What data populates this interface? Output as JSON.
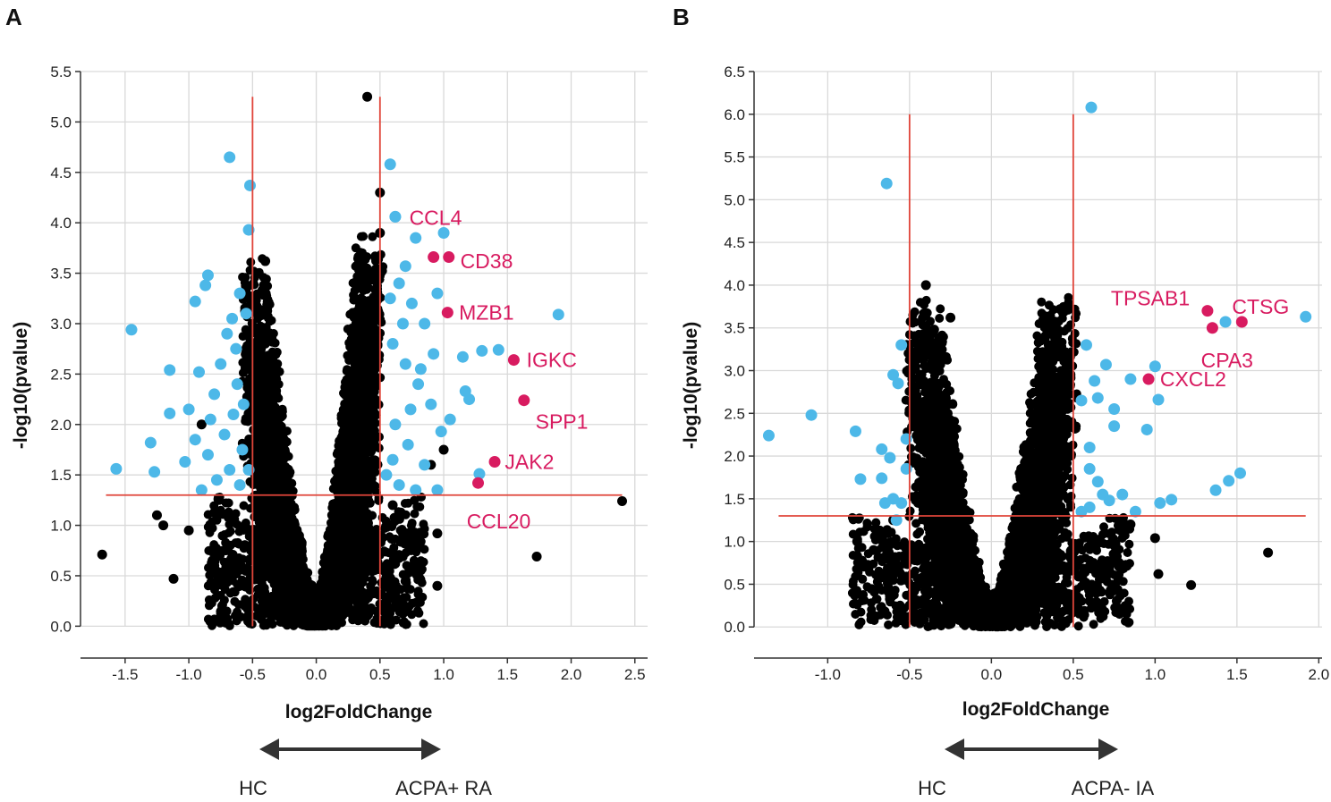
{
  "colors": {
    "nonsig": "#000000",
    "sig": "#4db8e8",
    "highlight": "#d81b60",
    "threshold": "#e0453a",
    "grid": "#d9d9d9"
  },
  "chart_data": [
    {
      "panel": "A",
      "type": "scatter",
      "title": "",
      "xlabel": "log2FoldChange",
      "ylabel": "-log10(pvalue)",
      "xlim": [
        -1.85,
        2.6
      ],
      "ylim": [
        -0.05,
        5.5
      ],
      "xticks": [
        -1.5,
        -1.0,
        -0.5,
        0.0,
        0.5,
        1.0,
        1.5,
        2.0,
        2.5
      ],
      "yticks": [
        0.0,
        0.5,
        1.0,
        1.5,
        2.0,
        2.5,
        3.0,
        3.5,
        4.0,
        4.5,
        5.0,
        5.5
      ],
      "xtick_labels": [
        "-1.5",
        "-1.0",
        "-0.5",
        "0.0",
        "0.5",
        "1.0",
        "1.5",
        "2.0",
        "2.5"
      ],
      "ytick_labels": [
        "0.0",
        "0.5",
        "1.0",
        "1.5",
        "2.0",
        "2.5",
        "3.0",
        "3.5",
        "4.0",
        "4.5",
        "5.0",
        "5.5"
      ],
      "thresholds": {
        "fc": [
          -0.5,
          0.5
        ],
        "fc_line_top": 5.25,
        "p": 1.3,
        "p_line_range": [
          -1.65,
          2.4
        ]
      },
      "cloud": {
        "peak_left": {
          "x": -0.48,
          "y": 3.4
        },
        "peak_right": {
          "x": 0.42,
          "y": 3.7
        },
        "base": 0.5,
        "n": 5000,
        "seed": 7
      },
      "nonsig_points": [
        [
          0.4,
          5.25
        ],
        [
          0.5,
          4.3
        ],
        [
          -0.4,
          3.62
        ],
        [
          0.5,
          3.9
        ],
        [
          -0.55,
          2.7
        ],
        [
          -0.9,
          2.0
        ],
        [
          0.9,
          1.6
        ],
        [
          1.0,
          1.75
        ],
        [
          1.73,
          0.69
        ],
        [
          2.4,
          1.24
        ],
        [
          -1.68,
          0.71
        ],
        [
          -1.25,
          1.1
        ],
        [
          -1.2,
          1.0
        ],
        [
          -1.12,
          0.47
        ],
        [
          -1.0,
          0.95
        ],
        [
          -0.8,
          0.6
        ],
        [
          0.8,
          0.8
        ],
        [
          0.95,
          0.92
        ],
        [
          0.95,
          0.4
        ],
        [
          0.6,
          1.2
        ]
      ],
      "sig_points": [
        [
          -0.68,
          4.65
        ],
        [
          -0.52,
          4.37
        ],
        [
          -0.53,
          3.93
        ],
        [
          0.58,
          4.58
        ],
        [
          0.62,
          4.06
        ],
        [
          0.78,
          3.85
        ],
        [
          1.0,
          3.9
        ],
        [
          -1.45,
          2.94
        ],
        [
          -0.85,
          3.48
        ],
        [
          -0.87,
          3.38
        ],
        [
          -0.95,
          3.22
        ],
        [
          -0.6,
          3.3
        ],
        [
          1.9,
          3.09
        ],
        [
          1.43,
          2.74
        ],
        [
          1.3,
          2.73
        ],
        [
          1.15,
          2.67
        ],
        [
          1.2,
          2.25
        ],
        [
          -1.15,
          2.54
        ],
        [
          -0.92,
          2.52
        ],
        [
          -1.15,
          2.11
        ],
        [
          -1.3,
          1.82
        ],
        [
          -1.57,
          1.56
        ],
        [
          -1.27,
          1.53
        ],
        [
          -1.03,
          1.63
        ],
        [
          1.17,
          2.33
        ],
        [
          1.05,
          2.05
        ],
        [
          0.98,
          1.93
        ],
        [
          1.28,
          1.51
        ],
        [
          0.95,
          1.35
        ],
        [
          0.7,
          3.57
        ],
        [
          0.65,
          3.4
        ],
        [
          0.75,
          3.2
        ],
        [
          0.85,
          3.0
        ],
        [
          0.6,
          2.8
        ],
        [
          0.7,
          2.6
        ],
        [
          0.8,
          2.4
        ],
        [
          0.9,
          2.2
        ],
        [
          0.62,
          2.0
        ],
        [
          0.72,
          1.8
        ],
        [
          0.85,
          1.6
        ],
        [
          0.55,
          1.5
        ],
        [
          0.65,
          1.4
        ],
        [
          0.78,
          1.35
        ],
        [
          0.68,
          3.0
        ],
        [
          0.58,
          3.25
        ],
        [
          0.92,
          2.7
        ],
        [
          0.82,
          2.55
        ],
        [
          0.74,
          2.15
        ],
        [
          0.6,
          1.65
        ],
        [
          0.95,
          3.3
        ],
        [
          -0.7,
          2.9
        ],
        [
          -0.75,
          2.6
        ],
        [
          -0.62,
          2.4
        ],
        [
          -0.8,
          2.3
        ],
        [
          -0.65,
          2.1
        ],
        [
          -0.72,
          1.9
        ],
        [
          -0.58,
          1.75
        ],
        [
          -0.85,
          1.7
        ],
        [
          -0.68,
          1.55
        ],
        [
          -0.6,
          1.4
        ],
        [
          -0.78,
          1.45
        ],
        [
          -0.9,
          1.35
        ],
        [
          -0.55,
          3.1
        ],
        [
          -0.63,
          2.75
        ],
        [
          -0.57,
          2.2
        ],
        [
          -0.95,
          1.85
        ],
        [
          -0.83,
          2.05
        ],
        [
          -1.0,
          2.15
        ],
        [
          -0.53,
          1.55
        ],
        [
          -0.66,
          3.05
        ]
      ],
      "highlights": [
        {
          "gene": "CCL4",
          "x": 0.62,
          "y": 4.06,
          "color": "sig",
          "label_x": 0.73,
          "label_y": 4.05
        },
        {
          "gene": "CD38",
          "x": 0.92,
          "y": 3.66,
          "color": "highlight",
          "label_x": 1.13,
          "label_y": 3.62
        },
        {
          "gene": "MZB1",
          "x": 1.03,
          "y": 3.11,
          "color": "highlight",
          "label_x": 1.12,
          "label_y": 3.11
        },
        {
          "gene": "IGKC",
          "x": 1.55,
          "y": 2.64,
          "color": "highlight",
          "label_x": 1.65,
          "label_y": 2.64
        },
        {
          "gene": "SPP1",
          "x": 1.63,
          "y": 2.24,
          "color": "highlight",
          "label_x": 1.72,
          "label_y": 2.03
        },
        {
          "gene": "JAK2",
          "x": 1.4,
          "y": 1.63,
          "color": "highlight",
          "label_x": 1.48,
          "label_y": 1.63
        },
        {
          "gene": "CCL20",
          "x": 1.27,
          "y": 1.42,
          "color": "highlight",
          "label_x": 1.18,
          "label_y": 1.04
        }
      ],
      "extra_highlight": [
        [
          1.04,
          3.66
        ]
      ],
      "arrow_labels": [
        "HC",
        "ACPA+ RA"
      ]
    },
    {
      "panel": "B",
      "type": "scatter",
      "title": "",
      "xlabel": "log2FoldChange",
      "ylabel": "-log10(pvalue)",
      "xlim": [
        -1.45,
        2.02
      ],
      "ylim": [
        -0.05,
        6.5
      ],
      "xticks": [
        -1.0,
        -0.5,
        0.0,
        0.5,
        1.0,
        1.5,
        2.0
      ],
      "yticks": [
        0.0,
        0.5,
        1.0,
        1.5,
        2.0,
        2.5,
        3.0,
        3.5,
        4.0,
        4.5,
        5.0,
        5.5,
        6.0,
        6.5
      ],
      "xtick_labels": [
        "-1.0",
        "-0.5",
        "0.0",
        "0.5",
        "1.0",
        "1.5",
        "2.0"
      ],
      "ytick_labels": [
        "0.0",
        "0.5",
        "1.0",
        "1.5",
        "2.0",
        "2.5",
        "3.0",
        "3.5",
        "4.0",
        "4.5",
        "5.0",
        "5.5",
        "6.0",
        "6.5"
      ],
      "thresholds": {
        "fc": [
          -0.5,
          0.5
        ],
        "fc_line_top": 6.0,
        "p": 1.3,
        "p_line_range": [
          -1.3,
          1.92
        ]
      },
      "cloud": {
        "peak_left": {
          "x": -0.42,
          "y": 3.5
        },
        "peak_right": {
          "x": 0.42,
          "y": 3.6
        },
        "base": 0.55,
        "n": 4500,
        "seed": 13
      },
      "nonsig_points": [
        [
          -0.4,
          4.0
        ],
        [
          -0.25,
          3.62
        ],
        [
          -0.35,
          3.48
        ],
        [
          0.42,
          3.72
        ],
        [
          0.38,
          3.45
        ],
        [
          0.35,
          3.3
        ],
        [
          1.0,
          1.04
        ],
        [
          1.69,
          0.87
        ],
        [
          1.02,
          0.62
        ],
        [
          1.22,
          0.49
        ],
        [
          -0.82,
          1.0
        ],
        [
          -0.82,
          0.83
        ],
        [
          -0.75,
          0.7
        ],
        [
          -0.72,
          0.9
        ],
        [
          0.78,
          0.75
        ],
        [
          0.65,
          0.98
        ],
        [
          0.85,
          1.2
        ],
        [
          -0.6,
          1.25
        ]
      ],
      "sig_points": [
        [
          0.61,
          6.08
        ],
        [
          -0.64,
          5.19
        ],
        [
          1.92,
          3.63
        ],
        [
          1.43,
          3.57
        ],
        [
          1.0,
          3.05
        ],
        [
          -1.36,
          2.24
        ],
        [
          -1.1,
          2.48
        ],
        [
          -0.83,
          2.29
        ],
        [
          -0.8,
          1.73
        ],
        [
          -0.67,
          2.08
        ],
        [
          -0.67,
          1.74
        ],
        [
          -0.62,
          1.98
        ],
        [
          -0.6,
          2.95
        ],
        [
          -0.55,
          3.3
        ],
        [
          -0.57,
          2.85
        ],
        [
          -0.6,
          1.5
        ],
        [
          -0.55,
          1.45
        ],
        [
          -0.58,
          1.25
        ],
        [
          1.02,
          2.66
        ],
        [
          0.95,
          2.31
        ],
        [
          0.75,
          2.55
        ],
        [
          0.65,
          2.68
        ],
        [
          0.7,
          3.07
        ],
        [
          0.58,
          3.3
        ],
        [
          0.63,
          2.88
        ],
        [
          0.6,
          1.85
        ],
        [
          0.65,
          1.7
        ],
        [
          0.68,
          1.55
        ],
        [
          0.72,
          1.48
        ],
        [
          0.6,
          1.4
        ],
        [
          0.8,
          1.55
        ],
        [
          0.88,
          1.35
        ],
        [
          1.1,
          1.49
        ],
        [
          1.45,
          1.71
        ],
        [
          1.52,
          1.8
        ],
        [
          1.37,
          1.6
        ],
        [
          1.03,
          1.45
        ],
        [
          0.85,
          2.9
        ],
        [
          0.75,
          2.35
        ],
        [
          0.55,
          2.65
        ],
        [
          0.6,
          2.1
        ],
        [
          0.55,
          1.35
        ],
        [
          -0.52,
          1.85
        ],
        [
          -0.65,
          1.45
        ],
        [
          -0.52,
          2.2
        ]
      ],
      "highlights": [
        {
          "gene": "TPSAB1",
          "x": 1.32,
          "y": 3.7,
          "color": "highlight",
          "label_x": 0.73,
          "label_y": 3.85
        },
        {
          "gene": "CTSG",
          "x": 1.53,
          "y": 3.57,
          "color": "highlight",
          "label_x": 1.47,
          "label_y": 3.75
        },
        {
          "gene": "CPA3",
          "x": 1.35,
          "y": 3.5,
          "color": "highlight",
          "label_x": 1.28,
          "label_y": 3.12
        },
        {
          "gene": "CXCL2",
          "x": 0.96,
          "y": 2.9,
          "color": "highlight",
          "label_x": 1.03,
          "label_y": 2.9
        }
      ],
      "extra_highlight": [],
      "arrow_labels": [
        "HC",
        "ACPA- IA"
      ]
    }
  ]
}
